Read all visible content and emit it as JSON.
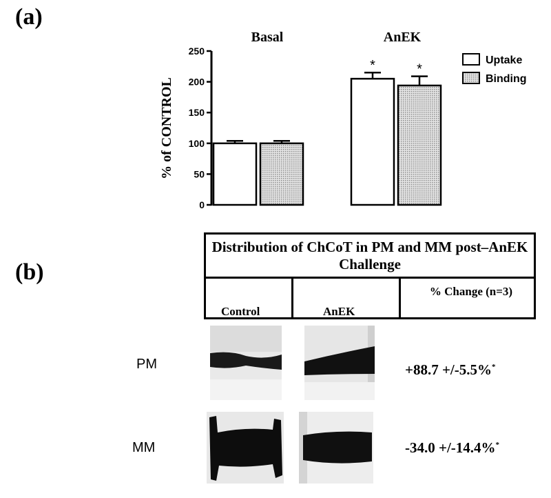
{
  "panel_a_label": "(a)",
  "panel_b_label": "(b)",
  "chart_data": {
    "type": "bar",
    "groups": [
      "Basal",
      "AnEK"
    ],
    "series": [
      {
        "name": "Uptake",
        "values": [
          100,
          205
        ],
        "errors": [
          4,
          10
        ],
        "fill": "#ffffff"
      },
      {
        "name": "Binding",
        "values": [
          100,
          194
        ],
        "errors": [
          4,
          15
        ],
        "fill": "#c8c8c8"
      }
    ],
    "ylabel": "% of CONTROL",
    "ylim": [
      0,
      250
    ],
    "yticks": [
      "0",
      "50",
      "100",
      "150",
      "200",
      "250"
    ],
    "significance": [
      "",
      "*"
    ],
    "legend_placement": "top-right"
  },
  "blot_table": {
    "title": "Distribution of ChCoT in PM and MM post–AnEK Challenge",
    "columns": [
      "Control",
      "AnEK",
      "% Change (n=3)"
    ],
    "rows": [
      {
        "label": "PM",
        "value": "+88.7 +/-5.5%",
        "mark": "*"
      },
      {
        "label": "MM",
        "value": "-34.0 +/-14.4%",
        "mark": "*"
      }
    ]
  }
}
